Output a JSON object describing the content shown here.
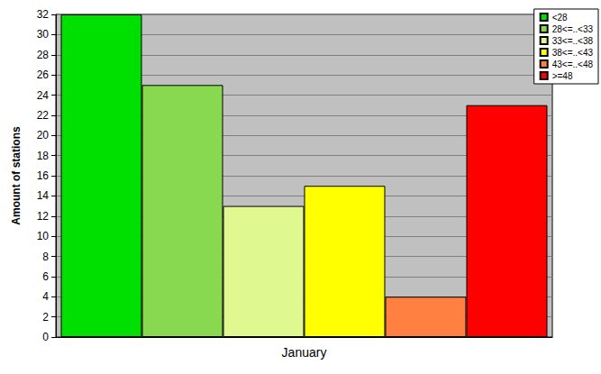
{
  "chart_data": {
    "type": "bar",
    "y_label": "Amount of stations",
    "categories": [
      "January"
    ],
    "series": [
      {
        "name": "<28",
        "color": "#00e000",
        "values": [
          32
        ]
      },
      {
        "name": "28<=..<33",
        "color": "#88d850",
        "values": [
          25
        ]
      },
      {
        "name": "33<=..<38",
        "color": "#e0f890",
        "values": [
          13
        ]
      },
      {
        "name": "38<=..<43",
        "color": "#ffff00",
        "values": [
          15
        ]
      },
      {
        "name": "43<=..<48",
        "color": "#ff8040",
        "values": [
          4
        ]
      },
      {
        "name": ">=48",
        "color": "#ff0000",
        "values": [
          23
        ]
      }
    ],
    "ylim": [
      0,
      32
    ],
    "yticks": [
      0,
      2,
      4,
      6,
      8,
      10,
      12,
      14,
      16,
      18,
      20,
      22,
      24,
      26,
      28,
      30,
      32
    ],
    "grid": true,
    "legend": "top-right"
  }
}
